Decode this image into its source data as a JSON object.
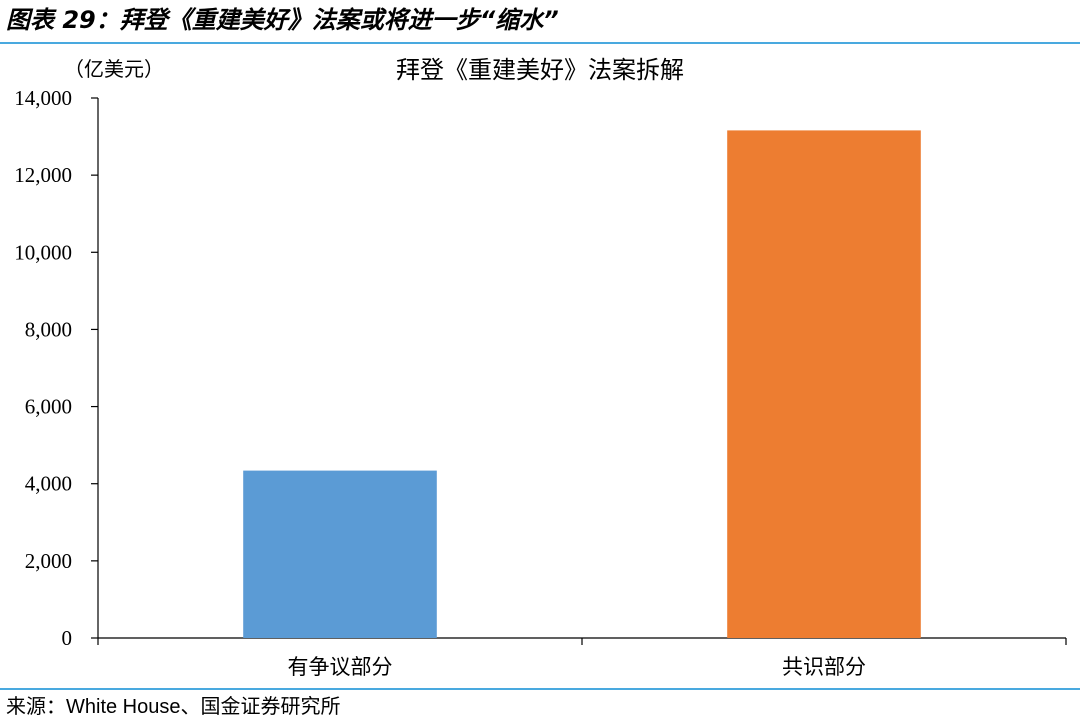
{
  "figure": {
    "title": "图表 29：拜登《重建美好》法案或将进一步“缩水”",
    "source": "来源：White House、国金证券研究所",
    "rule_color": "#49a9df"
  },
  "chart_data": {
    "type": "bar",
    "title": "拜登《重建美好》法案拆解",
    "unit_label": "（亿美元）",
    "xlabel": "",
    "ylabel": "",
    "categories": [
      "有争议部分",
      "共识部分"
    ],
    "values": [
      4340,
      13160
    ],
    "colors": [
      "#5b9bd5",
      "#ed7d31"
    ],
    "ylim": [
      0,
      14000
    ],
    "yticks": [
      0,
      2000,
      4000,
      6000,
      8000,
      10000,
      12000,
      14000
    ],
    "ytick_labels": [
      "0",
      "2,000",
      "4,000",
      "6,000",
      "8,000",
      "10,000",
      "12,000",
      "14,000"
    ],
    "grid": false,
    "legend": "none"
  }
}
